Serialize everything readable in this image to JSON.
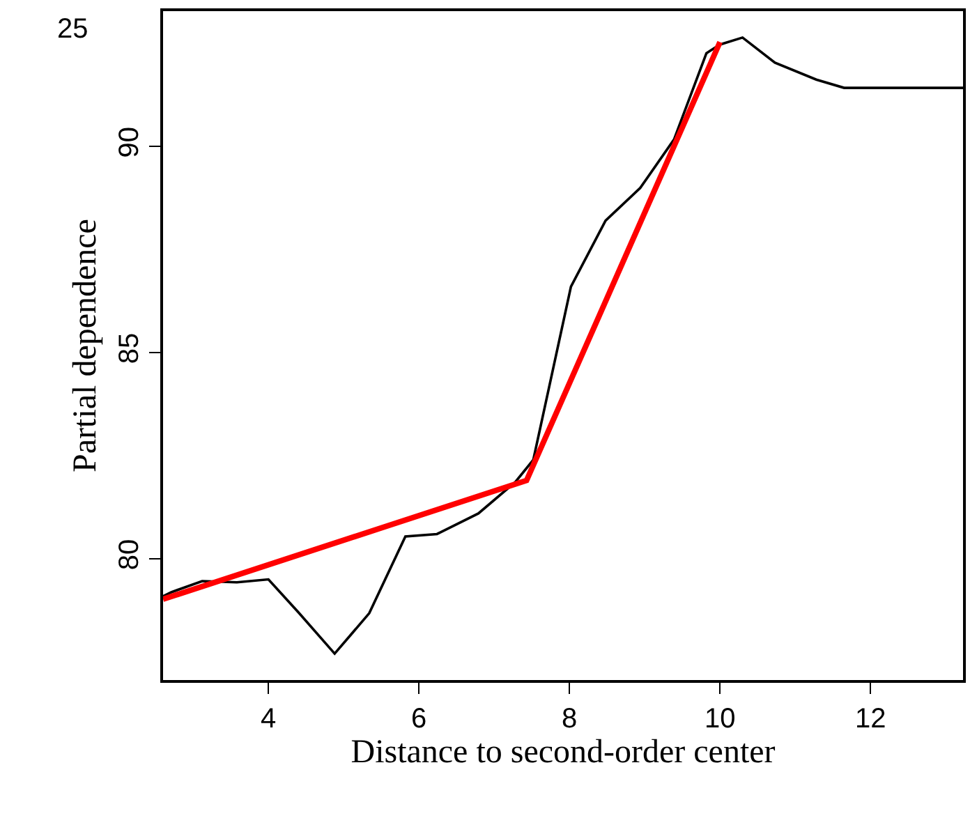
{
  "chart_data": {
    "type": "line",
    "xlabel": "Distance to second-order center",
    "ylabel": "Partial dependence",
    "annotations": [
      "25"
    ],
    "xlim": [
      2.6,
      13.23
    ],
    "ylim": [
      77.06,
      93.28
    ],
    "xticks": [
      4,
      6,
      8,
      10,
      12
    ],
    "yticks": [
      80,
      85,
      90
    ],
    "marker": "none",
    "line_style": "solid",
    "series": [
      {
        "color": "#000000",
        "x": [
          2.6,
          2.71,
          3.12,
          3.58,
          4.0,
          4.4,
          4.88,
          5.34,
          5.82,
          6.24,
          6.79,
          7.28,
          7.52,
          8.02,
          8.48,
          8.94,
          9.39,
          9.82,
          10.0,
          10.3,
          10.73,
          11.28,
          11.65,
          13.23
        ],
        "values": [
          79.09,
          79.19,
          79.46,
          79.43,
          79.5,
          78.7,
          77.7,
          78.68,
          80.54,
          80.6,
          81.1,
          81.86,
          82.4,
          86.6,
          88.2,
          88.99,
          90.17,
          92.26,
          92.47,
          92.64,
          92.03,
          91.62,
          91.42,
          91.42
        ]
      },
      {
        "color": "#ff0000",
        "x": [
          2.6,
          7.43,
          10.0
        ],
        "values": [
          79.02,
          81.9,
          92.53
        ]
      }
    ]
  }
}
